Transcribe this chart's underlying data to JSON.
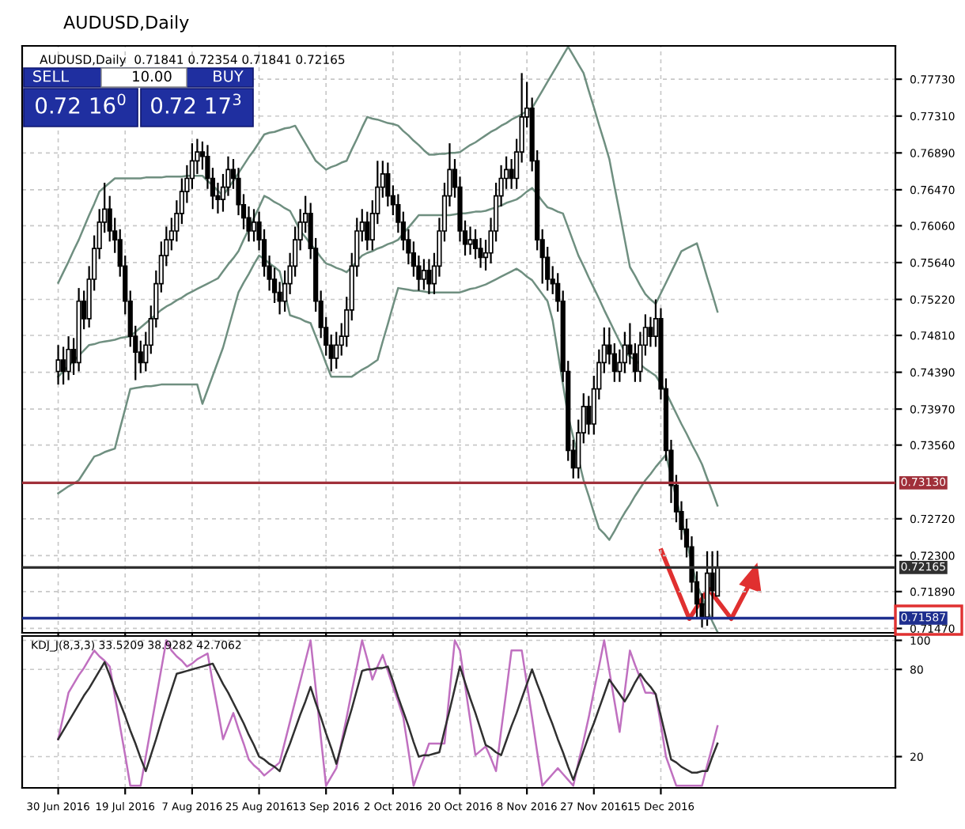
{
  "chart_data": [
    {
      "type": "candlestick",
      "title": "AUDUSD,Daily",
      "subtitle": "AUDUSD,Daily  0.71841 0.72354 0.71841 0.72165",
      "annotations": [
        "SELL",
        "10.00",
        "BUY",
        "0.72 16$^{0}$",
        "0.72 17$^{3}$"
      ],
      "categories": [
        null,
        null,
        null,
        null,
        null,
        null,
        null,
        null,
        null,
        null,
        null,
        null,
        null,
        null,
        null,
        null,
        null,
        null,
        null,
        null,
        null,
        null,
        null,
        null,
        null,
        null,
        null,
        null,
        null,
        null,
        null,
        null,
        null,
        null,
        null,
        null,
        null,
        null,
        null,
        null,
        null,
        null,
        null,
        null,
        null,
        null,
        null,
        null,
        null,
        null,
        null,
        null,
        null,
        null,
        null,
        null,
        null,
        null,
        null,
        null,
        null,
        null,
        null,
        null,
        null,
        null,
        null,
        null,
        null,
        null,
        null,
        null,
        null,
        null,
        null,
        null,
        null,
        null,
        null,
        null,
        null,
        null,
        null,
        null,
        null,
        null,
        null,
        null,
        null,
        null,
        null,
        null,
        null,
        null,
        null,
        null,
        null,
        null,
        null,
        null,
        null,
        null,
        null,
        null,
        null,
        null,
        null,
        null,
        null,
        null,
        null,
        null,
        null,
        null,
        null,
        null,
        null,
        null,
        null,
        null,
        null,
        null,
        null,
        null,
        null,
        null,
        null,
        null,
        null
      ],
      "ohlc": [
        [
          0.744,
          0.747,
          0.7425,
          0.7453
        ],
        [
          0.7453,
          0.7468,
          0.7425,
          0.744
        ],
        [
          0.744,
          0.748,
          0.743,
          0.7465
        ],
        [
          0.7465,
          0.7478,
          0.7436,
          0.745
        ],
        [
          0.745,
          0.7535,
          0.744,
          0.752
        ],
        [
          0.752,
          0.7532,
          0.7488,
          0.75
        ],
        [
          0.75,
          0.756,
          0.749,
          0.7545
        ],
        [
          0.7545,
          0.7595,
          0.7532,
          0.758
        ],
        [
          0.758,
          0.7625,
          0.7568,
          0.761
        ],
        [
          0.761,
          0.7655,
          0.7598,
          0.7625
        ],
        [
          0.7625,
          0.764,
          0.7588,
          0.76
        ],
        [
          0.76,
          0.7615,
          0.7575,
          0.759
        ],
        [
          0.759,
          0.7602,
          0.7548,
          0.756
        ],
        [
          0.756,
          0.7572,
          0.7505,
          0.752
        ],
        [
          0.752,
          0.7532,
          0.7468,
          0.748
        ],
        [
          0.748,
          0.7492,
          0.743,
          0.7462
        ],
        [
          0.7462,
          0.7475,
          0.7438,
          0.745
        ],
        [
          0.745,
          0.7485,
          0.744,
          0.747
        ],
        [
          0.747,
          0.7515,
          0.746,
          0.75
        ],
        [
          0.75,
          0.7555,
          0.749,
          0.754
        ],
        [
          0.754,
          0.7588,
          0.753,
          0.7572
        ],
        [
          0.7572,
          0.7605,
          0.756,
          0.759
        ],
        [
          0.759,
          0.7615,
          0.7578,
          0.76
        ],
        [
          0.76,
          0.7635,
          0.7588,
          0.762
        ],
        [
          0.762,
          0.766,
          0.7608,
          0.7645
        ],
        [
          0.7645,
          0.7675,
          0.7632,
          0.766
        ],
        [
          0.766,
          0.77,
          0.7648,
          0.768
        ],
        [
          0.768,
          0.7705,
          0.7665,
          0.769
        ],
        [
          0.769,
          0.7702,
          0.767,
          0.7685
        ],
        [
          0.7685,
          0.7698,
          0.7648,
          0.766
        ],
        [
          0.766,
          0.7672,
          0.7625,
          0.764
        ],
        [
          0.764,
          0.7655,
          0.762,
          0.7636
        ],
        [
          0.7636,
          0.7665,
          0.7622,
          0.765
        ],
        [
          0.765,
          0.7685,
          0.764,
          0.767
        ],
        [
          0.767,
          0.7682,
          0.7648,
          0.766
        ],
        [
          0.766,
          0.7672,
          0.7618,
          0.763
        ],
        [
          0.763,
          0.7642,
          0.7602,
          0.7615
        ],
        [
          0.7615,
          0.7628,
          0.7588,
          0.76
        ],
        [
          0.76,
          0.7625,
          0.7588,
          0.761
        ],
        [
          0.761,
          0.7622,
          0.7578,
          0.759
        ],
        [
          0.759,
          0.7602,
          0.7548,
          0.756
        ],
        [
          0.756,
          0.7572,
          0.7532,
          0.7545
        ],
        [
          0.7545,
          0.7558,
          0.7518,
          0.753
        ],
        [
          0.753,
          0.7542,
          0.7505,
          0.752
        ],
        [
          0.752,
          0.7555,
          0.7508,
          0.754
        ],
        [
          0.754,
          0.7575,
          0.7528,
          0.756
        ],
        [
          0.756,
          0.7605,
          0.7548,
          0.759
        ],
        [
          0.759,
          0.7625,
          0.7578,
          0.761
        ],
        [
          0.761,
          0.764,
          0.7598,
          0.762
        ],
        [
          0.762,
          0.7632,
          0.7568,
          0.758
        ],
        [
          0.758,
          0.7592,
          0.7508,
          0.752
        ],
        [
          0.752,
          0.7532,
          0.7478,
          0.749
        ],
        [
          0.749,
          0.7502,
          0.7458,
          0.747
        ],
        [
          0.747,
          0.7482,
          0.744,
          0.7455
        ],
        [
          0.7455,
          0.7485,
          0.7443,
          0.747
        ],
        [
          0.747,
          0.7495,
          0.7458,
          0.748
        ],
        [
          0.748,
          0.7525,
          0.7468,
          0.751
        ],
        [
          0.751,
          0.7575,
          0.7498,
          0.756
        ],
        [
          0.756,
          0.7615,
          0.7548,
          0.76
        ],
        [
          0.76,
          0.7625,
          0.7588,
          0.761
        ],
        [
          0.761,
          0.7622,
          0.7578,
          0.759
        ],
        [
          0.759,
          0.7635,
          0.7578,
          0.762
        ],
        [
          0.762,
          0.768,
          0.7608,
          0.765
        ],
        [
          0.765,
          0.768,
          0.7638,
          0.7665
        ],
        [
          0.7665,
          0.7678,
          0.7628,
          0.764
        ],
        [
          0.764,
          0.7652,
          0.7618,
          0.763
        ],
        [
          0.763,
          0.7642,
          0.7598,
          0.761
        ],
        [
          0.761,
          0.7622,
          0.7578,
          0.759
        ],
        [
          0.759,
          0.7602,
          0.7562,
          0.7575
        ],
        [
          0.7575,
          0.7588,
          0.7548,
          0.756
        ],
        [
          0.756,
          0.7572,
          0.7532,
          0.7545
        ],
        [
          0.7545,
          0.7568,
          0.7533,
          0.7555
        ],
        [
          0.7555,
          0.7568,
          0.7528,
          0.754
        ],
        [
          0.754,
          0.7575,
          0.7528,
          0.756
        ],
        [
          0.756,
          0.7615,
          0.7548,
          0.76
        ],
        [
          0.76,
          0.7655,
          0.7588,
          0.764
        ],
        [
          0.764,
          0.77,
          0.7628,
          0.767
        ],
        [
          0.767,
          0.7682,
          0.7638,
          0.765
        ],
        [
          0.765,
          0.7662,
          0.7588,
          0.76
        ],
        [
          0.76,
          0.7612,
          0.7572,
          0.7585
        ],
        [
          0.7585,
          0.7605,
          0.7573,
          0.759
        ],
        [
          0.759,
          0.7602,
          0.7568,
          0.758
        ],
        [
          0.758,
          0.7592,
          0.7558,
          0.757
        ],
        [
          0.757,
          0.759,
          0.7555,
          0.7575
        ],
        [
          0.7575,
          0.7615,
          0.7563,
          0.76
        ],
        [
          0.76,
          0.7655,
          0.7588,
          0.764
        ],
        [
          0.764,
          0.7675,
          0.7628,
          0.766
        ],
        [
          0.766,
          0.7685,
          0.7648,
          0.767
        ],
        [
          0.767,
          0.7682,
          0.7648,
          0.766
        ],
        [
          0.766,
          0.7705,
          0.7648,
          0.769
        ],
        [
          0.769,
          0.778,
          0.7678,
          0.773
        ],
        [
          0.773,
          0.777,
          0.7718,
          0.774
        ],
        [
          0.774,
          0.7752,
          0.7668,
          0.768
        ],
        [
          0.768,
          0.7692,
          0.7578,
          0.759
        ],
        [
          0.759,
          0.7602,
          0.754,
          0.757
        ],
        [
          0.757,
          0.7582,
          0.7532,
          0.7545
        ],
        [
          0.7545,
          0.756,
          0.7528,
          0.754
        ],
        [
          0.754,
          0.7552,
          0.7508,
          0.752
        ],
        [
          0.752,
          0.7532,
          0.7428,
          0.744
        ],
        [
          0.744,
          0.7452,
          0.7338,
          0.735
        ],
        [
          0.735,
          0.7362,
          0.7318,
          0.733
        ],
        [
          0.733,
          0.7385,
          0.7318,
          0.737
        ],
        [
          0.737,
          0.7415,
          0.7358,
          0.74
        ],
        [
          0.74,
          0.7412,
          0.7368,
          0.738
        ],
        [
          0.738,
          0.7435,
          0.7368,
          0.742
        ],
        [
          0.742,
          0.7465,
          0.7408,
          0.745
        ],
        [
          0.745,
          0.749,
          0.7438,
          0.747
        ],
        [
          0.747,
          0.749,
          0.7448,
          0.746
        ],
        [
          0.746,
          0.7472,
          0.7428,
          0.744
        ],
        [
          0.744,
          0.7465,
          0.7428,
          0.745
        ],
        [
          0.745,
          0.7485,
          0.7438,
          0.747
        ],
        [
          0.747,
          0.7495,
          0.7448,
          0.746
        ],
        [
          0.746,
          0.7472,
          0.7428,
          0.744
        ],
        [
          0.744,
          0.7485,
          0.7428,
          0.747
        ],
        [
          0.747,
          0.7505,
          0.7458,
          0.749
        ],
        [
          0.749,
          0.7502,
          0.7468,
          0.748
        ],
        [
          0.748,
          0.7522,
          0.7468,
          0.75
        ],
        [
          0.75,
          0.7512,
          0.7408,
          0.742
        ],
        [
          0.742,
          0.7432,
          0.7338,
          0.735
        ],
        [
          0.735,
          0.7362,
          0.729,
          0.731
        ],
        [
          0.731,
          0.7322,
          0.7268,
          0.728
        ],
        [
          0.728,
          0.7292,
          0.7248,
          0.726
        ],
        [
          0.726,
          0.7272,
          0.7228,
          0.724
        ],
        [
          0.724,
          0.7252,
          0.7188,
          0.72
        ],
        [
          0.72,
          0.7212,
          0.7158,
          0.7175
        ],
        [
          0.7175,
          0.7187,
          0.7148,
          0.716
        ],
        [
          0.716,
          0.7235,
          0.715,
          0.721
        ],
        [
          0.721,
          0.7235,
          0.716,
          0.719
        ],
        [
          0.71841,
          0.72354,
          0.71841,
          0.72165
        ]
      ],
      "series": [
        {
          "type": "line",
          "color": "#6f8f80",
          "values": [
            0.7541,
            0.7553,
            0.7565,
            0.7578,
            0.759,
            0.7604,
            0.7618,
            0.7631,
            0.7645,
            0.765,
            0.7655,
            0.766,
            0.766,
            0.766,
            0.766,
            0.766,
            0.766,
            0.7661,
            0.7661,
            0.7661,
            0.7661,
            0.7662,
            0.7662,
            0.7662,
            0.7662,
            0.7663,
            0.7663,
            0.7663,
            0.7663,
            0.7657,
            0.7652,
            0.7646,
            0.764,
            0.7649,
            0.7657,
            0.7666,
            0.7675,
            0.7684,
            0.7692,
            0.7701,
            0.771,
            0.7712,
            0.7713,
            0.7715,
            0.7717,
            0.7718,
            0.772,
            0.771,
            0.77,
            0.769,
            0.768,
            0.7675,
            0.767,
            0.7673,
            0.7675,
            0.7678,
            0.768,
            0.7693,
            0.7705,
            0.7718,
            0.773,
            0.7728,
            0.7727,
            0.7725,
            0.7723,
            0.7722,
            0.772,
            0.7714,
            0.7709,
            0.7703,
            0.7698,
            0.7692,
            0.7687,
            0.7687,
            0.7688,
            0.7688,
            0.7689,
            0.7689,
            0.769,
            0.7694,
            0.7698,
            0.7701,
            0.7705,
            0.7709,
            0.7713,
            0.7716,
            0.772,
            0.7723,
            0.7727,
            0.773,
            0.7733,
            0.7737,
            0.774,
            0.775,
            0.776,
            0.777,
            0.778,
            0.779,
            0.78,
            0.781,
            0.78,
            0.779,
            0.778,
            0.776,
            0.7741,
            0.7721,
            0.7702,
            0.7682,
            0.7651,
            0.7621,
            0.759,
            0.7559,
            0.7549,
            0.7538,
            0.7528,
            0.7522,
            0.7517,
            0.7529,
            0.7541,
            0.7553,
            0.7565,
            0.7577,
            0.758,
            0.7583,
            0.7586,
            0.7567,
            0.7547,
            0.7528,
            0.7508
          ]
        },
        {
          "type": "line",
          "color": "#6f8f80",
          "values": [
            0.7434,
            0.744,
            0.7446,
            0.7452,
            0.7458,
            0.7464,
            0.747,
            0.7471,
            0.7473,
            0.7474,
            0.7475,
            0.7476,
            0.7478,
            0.7479,
            0.748,
            0.7485,
            0.749,
            0.7495,
            0.75,
            0.7505,
            0.751,
            0.7514,
            0.7517,
            0.7521,
            0.7524,
            0.7528,
            0.7531,
            0.7534,
            0.7537,
            0.754,
            0.7543,
            0.7546,
            0.7554,
            0.7562,
            0.7569,
            0.7577,
            0.759,
            0.7602,
            0.7615,
            0.7627,
            0.764,
            0.7637,
            0.7633,
            0.763,
            0.7626,
            0.7623,
            0.7612,
            0.76,
            0.7593,
            0.7585,
            0.7578,
            0.757,
            0.7563,
            0.7561,
            0.7558,
            0.7556,
            0.7553,
            0.7559,
            0.7566,
            0.7572,
            0.7575,
            0.7577,
            0.758,
            0.7582,
            0.7585,
            0.7587,
            0.759,
            0.7597,
            0.7604,
            0.7611,
            0.7618,
            0.7618,
            0.7618,
            0.7618,
            0.7618,
            0.7618,
            0.7618,
            0.7619,
            0.762,
            0.762,
            0.7621,
            0.7622,
            0.7622,
            0.7623,
            0.7625,
            0.7627,
            0.7629,
            0.7632,
            0.7634,
            0.7636,
            0.764,
            0.7645,
            0.7649,
            0.7642,
            0.7634,
            0.7627,
            0.7625,
            0.7622,
            0.762,
            0.7604,
            0.7588,
            0.7572,
            0.756,
            0.7547,
            0.7535,
            0.7523,
            0.751,
            0.7498,
            0.7486,
            0.7474,
            0.7462,
            0.7457,
            0.7453,
            0.7448,
            0.7443,
            0.7439,
            0.7435,
            0.7426,
            0.7416,
            0.7404,
            0.7392,
            0.738,
            0.7369,
            0.7357,
            0.7346,
            0.7334,
            0.7318,
            0.7303,
            0.7287
          ]
        },
        {
          "type": "line",
          "color": "#6f8f80",
          "values": [
            0.7301,
            0.7305,
            0.7309,
            0.7312,
            0.7316,
            0.7325,
            0.7334,
            0.7343,
            0.7345,
            0.7348,
            0.735,
            0.7352,
            0.7375,
            0.7397,
            0.742,
            0.7421,
            0.7422,
            0.7423,
            0.7423,
            0.7424,
            0.7425,
            0.7425,
            0.7425,
            0.7425,
            0.7425,
            0.7425,
            0.7425,
            0.7425,
            0.7403,
            0.7419,
            0.7435,
            0.7451,
            0.7467,
            0.7488,
            0.7509,
            0.753,
            0.7541,
            0.7551,
            0.7562,
            0.7572,
            0.7568,
            0.7563,
            0.7559,
            0.7554,
            0.7529,
            0.7504,
            0.7502,
            0.75,
            0.7497,
            0.7495,
            0.748,
            0.7465,
            0.7449,
            0.7434,
            0.7434,
            0.7434,
            0.7434,
            0.7434,
            0.7438,
            0.7442,
            0.7445,
            0.7449,
            0.7453,
            0.7474,
            0.7494,
            0.7515,
            0.7535,
            0.7534,
            0.7533,
            0.7532,
            0.7532,
            0.7531,
            0.753,
            0.753,
            0.753,
            0.753,
            0.753,
            0.753,
            0.753,
            0.7532,
            0.7534,
            0.7535,
            0.7537,
            0.7539,
            0.7542,
            0.7545,
            0.7548,
            0.7551,
            0.7554,
            0.7557,
            0.7553,
            0.7548,
            0.7544,
            0.7536,
            0.7528,
            0.752,
            0.7498,
            0.7462,
            0.7425,
            0.7389,
            0.7365,
            0.734,
            0.7316,
            0.7298,
            0.7279,
            0.7261,
            0.7255,
            0.7248,
            0.7258,
            0.7269,
            0.7279,
            0.7288,
            0.7298,
            0.7307,
            0.7316,
            0.7323,
            0.7331,
            0.7338,
            0.7345,
            0.732,
            0.7295,
            0.727,
            0.7246,
            0.7221,
            0.7197,
            0.7183,
            0.7168,
            0.7155,
            0.7143
          ]
        }
      ],
      "ylim": [
        0.7142,
        0.7811
      ],
      "yticks": [
        {
          "value": 0.7773,
          "label": "0.77730"
        },
        {
          "value": 0.7731,
          "label": "0.77310"
        },
        {
          "value": 0.7689,
          "label": "0.76890"
        },
        {
          "value": 0.7647,
          "label": "0.76470"
        },
        {
          "value": 0.7606,
          "label": "0.76060"
        },
        {
          "value": 0.7564,
          "label": "0.75640"
        },
        {
          "value": 0.7522,
          "label": "0.75220"
        },
        {
          "value": 0.7481,
          "label": "0.74810"
        },
        {
          "value": 0.7439,
          "label": "0.74390"
        },
        {
          "value": 0.7397,
          "label": "0.73970"
        },
        {
          "value": 0.7356,
          "label": "0.73560"
        },
        {
          "value": 0.7272,
          "label": "0.72720"
        },
        {
          "value": 0.723,
          "label": "0.72300"
        },
        {
          "value": 0.7189,
          "label": "0.71890"
        },
        {
          "value": 0.7147,
          "label": "0.71470"
        }
      ],
      "ref_lines": [
        {
          "axis": "y",
          "value": 0.7313,
          "label": "0.73130",
          "color": "#a0303a"
        },
        {
          "axis": "y",
          "value": 0.72165,
          "label": "0.72165",
          "color": "#303030"
        },
        {
          "axis": "y",
          "value": 0.71587,
          "label": "0.71587",
          "color": "#1f2f8f"
        }
      ],
      "grid": true,
      "tick_labels": "y"
    },
    {
      "type": "line",
      "title": "KDJ_J(8,3,3) 33.5209 38.9282 42.7062",
      "categories": [
        "30 Jun 2016",
        null,
        null,
        null,
        null,
        null,
        null,
        null,
        null,
        null,
        null,
        null,
        null,
        "19 Jul 2016",
        null,
        null,
        null,
        null,
        null,
        null,
        null,
        null,
        null,
        null,
        null,
        null,
        "7 Aug 2016",
        null,
        null,
        null,
        null,
        null,
        null,
        null,
        null,
        null,
        null,
        null,
        null,
        "25 Aug 2016",
        null,
        null,
        null,
        null,
        null,
        null,
        null,
        null,
        null,
        null,
        null,
        null,
        "13 Sep 2016",
        null,
        null,
        null,
        null,
        null,
        null,
        null,
        null,
        null,
        null,
        null,
        null,
        "2 Oct 2016",
        null,
        null,
        null,
        null,
        null,
        null,
        null,
        null,
        null,
        null,
        null,
        null,
        "20 Oct 2016",
        null,
        null,
        null,
        null,
        null,
        null,
        null,
        null,
        null,
        null,
        null,
        null,
        "8 Nov 2016",
        null,
        null,
        null,
        null,
        null,
        null,
        null,
        null,
        null,
        null,
        null,
        null,
        "27 Nov 2016",
        null,
        null,
        null,
        null,
        null,
        null,
        null,
        null,
        null,
        null,
        null,
        null,
        "15 Dec 2016",
        null,
        null,
        null,
        null,
        null,
        null,
        null,
        null,
        null,
        null,
        null
      ],
      "series": [
        {
          "color": "#c070c0",
          "values": [
            32,
            48,
            64,
            70,
            76,
            81,
            87,
            93,
            89,
            86,
            82,
            62,
            41,
            21,
            0,
            0,
            0,
            20,
            40,
            60,
            80,
            100,
            93,
            89,
            86,
            82,
            84,
            87,
            89,
            91,
            71,
            52,
            32,
            41,
            50,
            39,
            29,
            18,
            14,
            11,
            7,
            10,
            13,
            16,
            30,
            44,
            58,
            72,
            86,
            100,
            67,
            33,
            0,
            6,
            12,
            30,
            47,
            65,
            82,
            100,
            87,
            73,
            82,
            90,
            79,
            68,
            58,
            47,
            24,
            0,
            10,
            19,
            29,
            29,
            29,
            29,
            65,
            100,
            93,
            69,
            45,
            21,
            24,
            27,
            19,
            10,
            38,
            65,
            93,
            93,
            93,
            70,
            47,
            23,
            0,
            4,
            8,
            12,
            8,
            4,
            0,
            16,
            31,
            47,
            65,
            82,
            100,
            79,
            58,
            37,
            65,
            93,
            83,
            74,
            64,
            64,
            63,
            42,
            20,
            10,
            0,
            0,
            0,
            0,
            0,
            0,
            14,
            27,
            41
          ]
        },
        {
          "color": "#303030",
          "values": [
            32,
            38,
            44,
            50,
            56,
            62,
            67,
            73,
            79,
            85,
            76,
            66,
            57,
            48,
            38,
            29,
            19,
            10,
            21,
            32,
            44,
            55,
            66,
            77,
            78,
            79,
            80,
            81,
            82,
            83,
            84,
            77,
            70,
            64,
            57,
            50,
            43,
            35,
            28,
            20,
            18,
            15,
            13,
            10,
            20,
            29,
            39,
            49,
            58,
            68,
            57,
            47,
            36,
            26,
            15,
            28,
            41,
            53,
            66,
            79,
            80,
            80,
            81,
            81,
            82,
            72,
            61,
            51,
            41,
            30,
            20,
            21,
            21,
            22,
            23,
            38,
            52,
            67,
            82,
            71,
            60,
            50,
            39,
            28,
            26,
            23,
            21,
            31,
            41,
            50,
            60,
            70,
            80,
            70,
            61,
            51,
            42,
            32,
            23,
            13,
            4,
            14,
            24,
            34,
            43,
            53,
            63,
            73,
            68,
            63,
            58,
            64,
            71,
            77,
            72,
            68,
            63,
            48,
            33,
            18,
            16,
            13,
            11,
            9,
            9,
            10,
            10,
            20,
            29
          ]
        }
      ],
      "ylim": [
        -1.5,
        103
      ],
      "yticks": [
        20,
        80,
        100
      ],
      "grid": true
    }
  ]
}
